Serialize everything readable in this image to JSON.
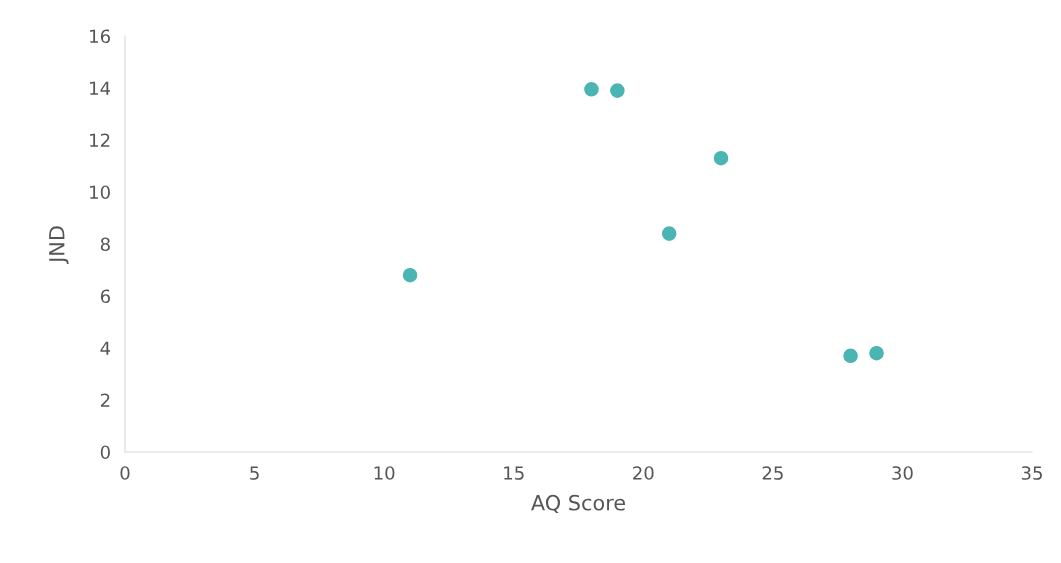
{
  "chart_data": {
    "type": "scatter",
    "xlabel": "AQ Score",
    "ylabel": "JND",
    "x": [
      11,
      18,
      19,
      21,
      23,
      28,
      29
    ],
    "series": [
      {
        "color": "#4ab5b3",
        "values": [
          6.8,
          13.95,
          13.9,
          8.4,
          11.3,
          3.7,
          3.8
        ]
      }
    ],
    "xlim": [
      0,
      35
    ],
    "xticks": [
      0,
      5,
      10,
      15,
      20,
      25,
      30,
      35
    ],
    "ylim": [
      0,
      16
    ],
    "yticks": [
      0,
      2,
      4,
      6,
      8,
      10,
      12,
      14,
      16
    ],
    "grid": false,
    "marker": "circle"
  }
}
